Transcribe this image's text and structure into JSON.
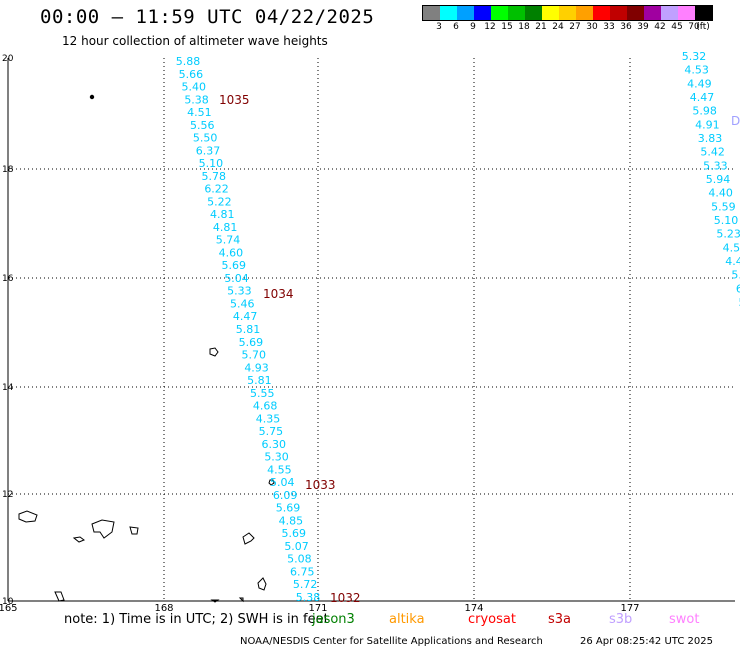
{
  "title": "00:00 — 11:59 UTC 04/22/2025",
  "subtitle": "12 hour collection of altimeter wave heights",
  "legend": {
    "colors": [
      "#808080",
      "#00ffff",
      "#00a0ff",
      "#0000ff",
      "#00ff00",
      "#00c000",
      "#008000",
      "#ffff00",
      "#ffd000",
      "#ffa000",
      "#ff0000",
      "#c00000",
      "#800000",
      "#a000a0",
      "#c0a0ff",
      "#ff80ff",
      "#000000"
    ],
    "labels": [
      "3",
      "6",
      "9",
      "12",
      "15",
      "18",
      "21",
      "24",
      "27",
      "30",
      "33",
      "36",
      "39",
      "42",
      "45",
      "70",
      "(ft)"
    ]
  },
  "axes": {
    "x_ticks": [
      "165",
      "168",
      "171",
      "174",
      "177"
    ],
    "y_ticks": [
      "20",
      "18",
      "16",
      "14",
      "12",
      "10"
    ]
  },
  "track_main": {
    "color": "#00ccff",
    "values": [
      "5.88",
      "5.66",
      "5.40",
      "5.38",
      "4.51",
      "5.56",
      "5.50",
      "6.37",
      "5.10",
      "5.78",
      "6.22",
      "5.22",
      "4.81",
      "4.81",
      "5.74",
      "4.60",
      "5.69",
      "5.04",
      "5.33",
      "5.46",
      "4.47",
      "5.81",
      "5.69",
      "5.70",
      "4.93",
      "5.81",
      "5.55",
      "4.68",
      "4.35",
      "5.75",
      "6.30",
      "5.30",
      "4.55",
      "5.04",
      "6.09",
      "5.69",
      "4.85",
      "5.69",
      "5.07",
      "5.08",
      "6.75",
      "5.72",
      "5.38"
    ]
  },
  "track_right": {
    "color": "#00ccff",
    "values": [
      "5.32",
      "4.53",
      "4.49",
      "4.47",
      "5.98",
      "4.91",
      "3.83",
      "5.42",
      "5.33",
      "5.94",
      "4.40",
      "5.59",
      "5.10",
      "5.23",
      "4.5",
      "4.4",
      "5.",
      "6",
      "5"
    ]
  },
  "track_right_marker": "D",
  "times": [
    "1035",
    "1034",
    "1033",
    "1032"
  ],
  "footer": {
    "note": "note: 1) Time is in UTC; 2) SWH is in feet",
    "satellites": [
      {
        "name": "jason3",
        "color": "#008000"
      },
      {
        "name": "altika",
        "color": "#ff9900"
      },
      {
        "name": "cryosat",
        "color": "#ff0000"
      },
      {
        "name": "s3a",
        "color": "#c00000"
      },
      {
        "name": "s3b",
        "color": "#c0a0ff"
      },
      {
        "name": "swot",
        "color": "#ff80ff"
      }
    ],
    "credit": "NOAA/NESDIS Center for Satellite Applications and Research",
    "timestamp": "26 Apr 08:25:42 UTC 2025"
  }
}
